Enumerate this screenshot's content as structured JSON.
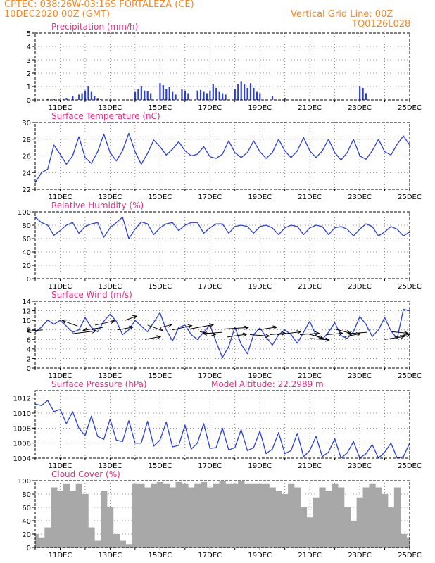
{
  "header": {
    "station": "CPTEC:   038:26W-03:16S   FORTALEZA (CE)",
    "run": "10DEC2020 00Z (GMT)",
    "grid_note": "Vertical Grid Line: 00Z",
    "code": "TQ0126L028"
  },
  "colors": {
    "header": "#f08a24",
    "title": "#e0308a",
    "line": "#2a3fd6",
    "bar": "#2a3fd6",
    "cloud": "#a8a8a8",
    "arrow": "#000000",
    "grid": "#777777"
  },
  "chart_data": [
    {
      "id": "precip",
      "type": "bar",
      "title": "Precipitation (mm/h)",
      "ylim": [
        0,
        5
      ],
      "yticks": [
        0,
        1,
        2,
        3,
        4,
        5
      ],
      "xlim": [
        0,
        15
      ],
      "xticks": [
        1,
        3,
        5,
        7,
        9,
        11,
        13,
        15
      ],
      "xtick_labels": [
        "11DEC",
        "13DEC",
        "15DEC",
        "17DEC",
        "19DEC",
        "21DEC",
        "23DEC",
        "25DEC"
      ],
      "grid": true,
      "x": [
        0.5,
        0.75,
        1.125,
        1.25,
        1.5,
        1.75,
        1.875,
        2,
        2.125,
        2.25,
        2.375,
        2.5,
        2.625,
        4,
        4.125,
        4.25,
        4.375,
        4.5,
        4.625,
        5,
        5.125,
        5.25,
        5.375,
        5.5,
        5.625,
        5.875,
        6,
        6.125,
        6.5,
        6.625,
        6.75,
        6.875,
        7,
        7.125,
        7.25,
        7.375,
        7.5,
        7.625,
        8,
        8.125,
        8.25,
        8.375,
        8.5,
        8.625,
        8.75,
        8.875,
        9,
        9.5,
        10,
        13,
        13.125,
        13.25
      ],
      "values": [
        0.08,
        0.05,
        0.1,
        0.15,
        0.3,
        0.4,
        0.5,
        0.7,
        1.05,
        0.6,
        0.3,
        0.15,
        0.05,
        0.6,
        0.8,
        1.05,
        0.7,
        0.65,
        0.5,
        1.25,
        1.1,
        0.8,
        1.0,
        0.6,
        0.4,
        0.8,
        0.7,
        0.5,
        0.7,
        0.75,
        0.6,
        0.5,
        0.7,
        1.2,
        0.9,
        0.6,
        0.5,
        0.4,
        0.8,
        1.2,
        1.4,
        1.2,
        0.9,
        1.25,
        0.9,
        0.6,
        0.5,
        0.3,
        0.15,
        1.05,
        0.9,
        0.5
      ]
    },
    {
      "id": "temperature",
      "type": "line",
      "title": "Surface Temperature (nC)",
      "ylim": [
        22,
        30
      ],
      "yticks": [
        22,
        24,
        26,
        28,
        30
      ],
      "xlim": [
        0,
        15
      ],
      "xticks": [
        1,
        3,
        5,
        7,
        9,
        11,
        13,
        15
      ],
      "xtick_labels": [
        "11DEC",
        "13DEC",
        "15DEC",
        "17DEC",
        "19DEC",
        "21DEC",
        "23DEC",
        "25DEC"
      ],
      "grid": true,
      "x": [
        0,
        0.25,
        0.5,
        0.75,
        1,
        1.25,
        1.5,
        1.75,
        2,
        2.25,
        2.5,
        2.75,
        3,
        3.25,
        3.5,
        3.75,
        4,
        4.25,
        4.5,
        4.75,
        5,
        5.25,
        5.5,
        5.75,
        6,
        6.25,
        6.5,
        6.75,
        7,
        7.25,
        7.5,
        7.75,
        8,
        8.25,
        8.5,
        8.75,
        9,
        9.25,
        9.5,
        9.75,
        10,
        10.25,
        10.5,
        10.75,
        11,
        11.25,
        11.5,
        11.75,
        12,
        12.25,
        12.5,
        12.75,
        13,
        13.25,
        13.5,
        13.75,
        14,
        14.25,
        14.5,
        14.75,
        15
      ],
      "values": [
        22.8,
        24.0,
        24.4,
        27.3,
        26.2,
        25.0,
        26.0,
        28.3,
        25.8,
        25.1,
        26.5,
        28.6,
        26.4,
        25.4,
        26.6,
        28.7,
        26.5,
        25.0,
        26.3,
        27.9,
        27.1,
        26.1,
        26.8,
        27.7,
        26.6,
        26.0,
        26.2,
        27.1,
        25.9,
        25.7,
        26.2,
        27.8,
        26.4,
        25.8,
        26.4,
        27.8,
        26.5,
        25.7,
        26.4,
        28.0,
        26.6,
        25.8,
        26.6,
        28.2,
        26.6,
        25.8,
        26.6,
        28.0,
        26.4,
        25.5,
        26.4,
        28.0,
        26.0,
        25.6,
        26.6,
        28.0,
        26.5,
        26.1,
        27.4,
        28.4,
        27.3
      ]
    },
    {
      "id": "humidity",
      "type": "line",
      "title": "Relative Humidity (%)",
      "ylim": [
        0,
        100
      ],
      "yticks": [
        0,
        20,
        40,
        60,
        80,
        100
      ],
      "xlim": [
        0,
        15
      ],
      "xticks": [
        1,
        3,
        5,
        7,
        9,
        11,
        13,
        15
      ],
      "xtick_labels": [
        "11DEC",
        "13DEC",
        "15DEC",
        "17DEC",
        "19DEC",
        "21DEC",
        "23DEC",
        "25DEC"
      ],
      "grid": true,
      "x": [
        0,
        0.25,
        0.5,
        0.75,
        1,
        1.25,
        1.5,
        1.75,
        2,
        2.25,
        2.5,
        2.75,
        3,
        3.25,
        3.5,
        3.75,
        4,
        4.25,
        4.5,
        4.75,
        5,
        5.25,
        5.5,
        5.75,
        6,
        6.25,
        6.5,
        6.75,
        7,
        7.25,
        7.5,
        7.75,
        8,
        8.25,
        8.5,
        8.75,
        9,
        9.25,
        9.5,
        9.75,
        10,
        10.25,
        10.5,
        10.75,
        11,
        11.25,
        11.5,
        11.75,
        12,
        12.25,
        12.5,
        12.75,
        13,
        13.25,
        13.5,
        13.75,
        14,
        14.25,
        14.5,
        14.75,
        15
      ],
      "values": [
        92,
        84,
        80,
        65,
        72,
        80,
        84,
        68,
        78,
        82,
        84,
        62,
        76,
        84,
        92,
        60,
        74,
        85,
        82,
        66,
        76,
        82,
        84,
        72,
        80,
        84,
        84,
        68,
        76,
        82,
        82,
        68,
        78,
        80,
        78,
        68,
        78,
        80,
        76,
        66,
        76,
        80,
        78,
        66,
        76,
        80,
        78,
        66,
        76,
        78,
        74,
        64,
        74,
        82,
        78,
        64,
        70,
        78,
        74,
        64,
        70
      ]
    },
    {
      "id": "wind",
      "type": "line",
      "title": "Surface Wind (m/s)",
      "ylim": [
        0,
        14
      ],
      "yticks": [
        0,
        2,
        4,
        6,
        8,
        10,
        12,
        14
      ],
      "xlim": [
        0,
        15
      ],
      "xticks": [
        1,
        3,
        5,
        7,
        9,
        11,
        13,
        15
      ],
      "xtick_labels": [
        "11DEC",
        "13DEC",
        "15DEC",
        "17DEC",
        "19DEC",
        "21DEC",
        "23DEC",
        "25DEC"
      ],
      "grid": true,
      "x": [
        0,
        0.25,
        0.5,
        0.75,
        1,
        1.25,
        1.5,
        1.75,
        2,
        2.25,
        2.5,
        2.75,
        3,
        3.25,
        3.5,
        3.75,
        4,
        4.25,
        4.5,
        4.75,
        5,
        5.25,
        5.5,
        5.75,
        6,
        6.25,
        6.5,
        6.75,
        7,
        7.25,
        7.5,
        7.75,
        8,
        8.25,
        8.5,
        8.75,
        9,
        9.25,
        9.5,
        9.75,
        10,
        10.25,
        10.5,
        10.75,
        11,
        11.25,
        11.5,
        11.75,
        12,
        12.25,
        12.5,
        12.75,
        13,
        13.25,
        13.5,
        13.75,
        14,
        14.25,
        14.5,
        14.75,
        15
      ],
      "values": [
        7.5,
        8.6,
        10.0,
        9.2,
        10.0,
        8.8,
        7.5,
        8.0,
        10.6,
        8.5,
        7.6,
        9.8,
        11.3,
        9.8,
        7.0,
        8.0,
        10.0,
        8.8,
        7.6,
        9.6,
        11.6,
        8.0,
        5.7,
        8.5,
        9.0,
        7.0,
        6.0,
        7.5,
        9.0,
        5.5,
        2.2,
        4.5,
        8.6,
        5.0,
        3.0,
        7.0,
        8.4,
        6.5,
        4.8,
        7.0,
        8.0,
        7.0,
        5.2,
        7.5,
        9.8,
        6.8,
        6.0,
        7.5,
        9.5,
        6.8,
        6.2,
        7.6,
        10.8,
        9.2,
        6.6,
        8.0,
        10.6,
        7.8,
        6.2,
        12.3,
        12.0
      ],
      "arrows": [
        {
          "x": 0.3,
          "y": 8.0,
          "u": -4,
          "v": -1
        },
        {
          "x": 1.5,
          "y": 7.2,
          "u": 6,
          "v": 2
        },
        {
          "x": 1.7,
          "y": 8.8,
          "u": -4,
          "v": 4
        },
        {
          "x": 2.4,
          "y": 9.0,
          "u": 5,
          "v": 3
        },
        {
          "x": 2.7,
          "y": 8.5,
          "u": -5,
          "v": -2
        },
        {
          "x": 3.3,
          "y": 8.0,
          "u": 4,
          "v": 2
        },
        {
          "x": 3.6,
          "y": 10.0,
          "u": 3,
          "v": 3
        },
        {
          "x": 4.4,
          "y": 6.0,
          "u": 4,
          "v": 2
        },
        {
          "x": 4.5,
          "y": 9.0,
          "u": 4,
          "v": -4
        },
        {
          "x": 5.0,
          "y": 8.5,
          "u": 3,
          "v": 2
        },
        {
          "x": 5.5,
          "y": 8.0,
          "u": 5,
          "v": 3
        },
        {
          "x": 6.2,
          "y": 8.2,
          "u": 6,
          "v": 3
        },
        {
          "x": 6.6,
          "y": 7.6,
          "u": 4,
          "v": -2
        },
        {
          "x": 7.5,
          "y": 7.5,
          "u": -5,
          "v": -1
        },
        {
          "x": 7.6,
          "y": 8.2,
          "u": 6,
          "v": 1
        },
        {
          "x": 7.7,
          "y": 6.5,
          "u": 5,
          "v": 2
        },
        {
          "x": 8.6,
          "y": 7.0,
          "u": 5,
          "v": -1
        },
        {
          "x": 8.9,
          "y": 8.0,
          "u": 5,
          "v": 2
        },
        {
          "x": 9.4,
          "y": 7.0,
          "u": 4,
          "v": 1
        },
        {
          "x": 9.7,
          "y": 7.0,
          "u": 6,
          "v": 2
        },
        {
          "x": 10.6,
          "y": 7.0,
          "u": 5,
          "v": 1
        },
        {
          "x": 10.9,
          "y": 7.2,
          "u": 4,
          "v": -3
        },
        {
          "x": 11.0,
          "y": 6.2,
          "u": 5,
          "v": -1
        },
        {
          "x": 11.7,
          "y": 7.0,
          "u": 4,
          "v": 1
        },
        {
          "x": 12.4,
          "y": 6.6,
          "u": 4,
          "v": 2
        },
        {
          "x": 12.0,
          "y": 8.2,
          "u": 4,
          "v": -3
        },
        {
          "x": 13.3,
          "y": 7.5,
          "u": -5,
          "v": -1
        },
        {
          "x": 14.0,
          "y": 6.0,
          "u": 5,
          "v": 2
        },
        {
          "x": 14.3,
          "y": 7.6,
          "u": 4,
          "v": -1
        },
        {
          "x": 14.4,
          "y": 6.5,
          "u": 4,
          "v": 2
        }
      ]
    },
    {
      "id": "pressure",
      "type": "line",
      "title": "Surface Pressure (hPa)",
      "subtitle": "Model Altitude: 22.2989 m",
      "ylim": [
        1004,
        1013
      ],
      "yticks": [
        1004,
        1006,
        1008,
        1010,
        1012
      ],
      "xlim": [
        0,
        15
      ],
      "xticks": [
        1,
        3,
        5,
        7,
        9,
        11,
        13,
        15
      ],
      "xtick_labels": [
        "11DEC",
        "13DEC",
        "15DEC",
        "17DEC",
        "19DEC",
        "21DEC",
        "23DEC",
        "25DEC"
      ],
      "grid": true,
      "x": [
        0,
        0.25,
        0.5,
        0.75,
        1,
        1.25,
        1.5,
        1.75,
        2,
        2.25,
        2.5,
        2.75,
        3,
        3.25,
        3.5,
        3.75,
        4,
        4.25,
        4.5,
        4.75,
        5,
        5.25,
        5.5,
        5.75,
        6,
        6.25,
        6.5,
        6.75,
        7,
        7.25,
        7.5,
        7.75,
        8,
        8.25,
        8.5,
        8.75,
        9,
        9.25,
        9.5,
        9.75,
        10,
        10.25,
        10.5,
        10.75,
        11,
        11.25,
        11.5,
        11.75,
        12,
        12.25,
        12.5,
        12.75,
        13,
        13.25,
        13.5,
        13.75,
        14,
        14.25,
        14.5,
        14.75,
        15
      ],
      "values": [
        1011.2,
        1011.0,
        1011.7,
        1010.2,
        1010.5,
        1008.6,
        1010.2,
        1008.0,
        1007.0,
        1009.6,
        1006.9,
        1006.5,
        1009.2,
        1006.4,
        1006.2,
        1009.0,
        1006.0,
        1006.0,
        1008.9,
        1005.6,
        1006.4,
        1008.8,
        1005.5,
        1005.7,
        1008.4,
        1005.2,
        1006.0,
        1008.6,
        1005.3,
        1005.4,
        1008.0,
        1005.1,
        1005.4,
        1007.8,
        1005.0,
        1005.4,
        1007.6,
        1004.6,
        1005.2,
        1007.4,
        1004.6,
        1005.0,
        1007.3,
        1004.2,
        1005.0,
        1006.9,
        1004.2,
        1004.8,
        1006.6,
        1004.0,
        1004.7,
        1006.2,
        1004.0,
        1004.6,
        1005.8,
        1004.0,
        1004.8,
        1006.0,
        1004.0,
        1004.2,
        1006.0
      ]
    },
    {
      "id": "cloud",
      "type": "bar",
      "title": "Cloud Cover (%)",
      "ylim": [
        0,
        100
      ],
      "yticks": [
        0,
        20,
        40,
        60,
        80,
        100
      ],
      "xlim": [
        0,
        15
      ],
      "xticks": [
        1,
        3,
        5,
        7,
        9,
        11,
        13,
        15
      ],
      "xtick_labels": [
        "11DEC",
        "13DEC",
        "15DEC",
        "17DEC",
        "19DEC",
        "21DEC",
        "23DEC",
        "25DEC"
      ],
      "grid": true,
      "x": [
        0,
        0.25,
        0.5,
        0.75,
        1,
        1.25,
        1.5,
        1.75,
        2,
        2.25,
        2.5,
        2.75,
        3,
        3.25,
        3.5,
        3.75,
        4,
        4.25,
        4.5,
        4.75,
        5,
        5.25,
        5.5,
        5.75,
        6,
        6.25,
        6.5,
        6.75,
        7,
        7.25,
        7.5,
        7.75,
        8,
        8.25,
        8.5,
        8.75,
        9,
        9.25,
        9.5,
        9.75,
        10,
        10.25,
        10.5,
        10.75,
        11,
        11.25,
        11.5,
        11.75,
        12,
        12.25,
        12.5,
        12.75,
        13,
        13.25,
        13.5,
        13.75,
        14,
        14.25,
        14.5,
        14.75,
        15
      ],
      "values": [
        20,
        15,
        30,
        90,
        85,
        95,
        85,
        95,
        80,
        30,
        10,
        85,
        60,
        20,
        10,
        5,
        95,
        95,
        90,
        95,
        98,
        95,
        90,
        98,
        95,
        90,
        95,
        98,
        90,
        95,
        100,
        95,
        95,
        100,
        95,
        95,
        95,
        95,
        90,
        85,
        80,
        95,
        90,
        60,
        45,
        75,
        90,
        85,
        95,
        90,
        60,
        40,
        75,
        90,
        95,
        90,
        80,
        60,
        90,
        20,
        15
      ]
    }
  ]
}
